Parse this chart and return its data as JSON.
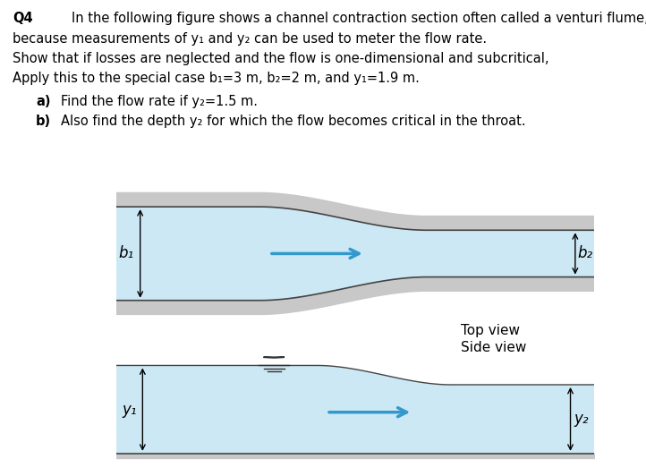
{
  "title_q": "Q4",
  "text_line0": "In the following figure shows a channel contraction section often called a venturi flume,",
  "text_line1": "because measurements of y₁ and y₂ can be used to meter the flow rate.",
  "text_line2": "Show that if losses are neglected and the flow is one-dimensional and subcritical,",
  "text_line3": "Apply this to the special case b₁=3 m, b₂=2 m, and y₁=1.9 m.",
  "bullet_a_label": "a)",
  "bullet_a": "Find the flow rate if y₂=1.5 m.",
  "bullet_b_label": "b)",
  "bullet_b": "Also find the depth y₂ for which the flow becomes critical in the throat.",
  "water_color": "#cce8f4",
  "wall_color_light": "#c8c8c8",
  "wall_color_dark": "#a0a0a0",
  "line_color": "#555555",
  "arrow_color": "#3399cc",
  "dim_arrow_color": "#222222",
  "bg_color": "#ffffff",
  "top_view_label": "Top view",
  "side_view_label": "Side view",
  "b1_label": "b₁",
  "b2_label": "b₂",
  "y1_label": "y₁",
  "y2_label": "y₂"
}
